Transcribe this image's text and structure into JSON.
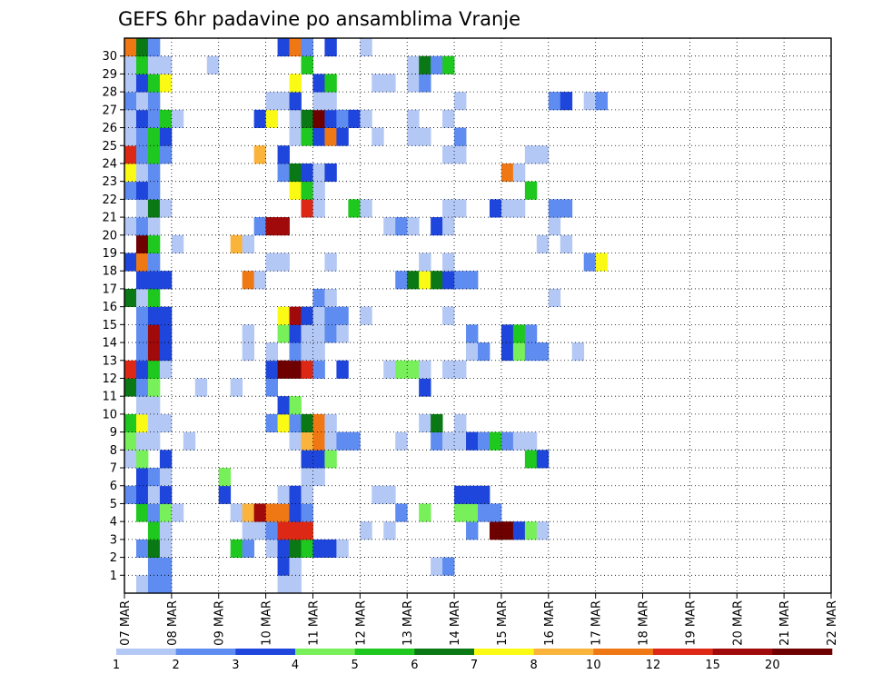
{
  "chart_data": {
    "type": "heatmap",
    "title": "GEFS 6hr padavine po ansamblima Vranje",
    "xlabel": "",
    "ylabel": "",
    "x_tick_labels": [
      "07 MAR",
      "08 MAR",
      "09 MAR",
      "10 MAR",
      "11 MAR",
      "12 MAR",
      "13 MAR",
      "14 MAR",
      "15 MAR",
      "16 MAR",
      "17 MAR",
      "18 MAR",
      "19 MAR",
      "20 MAR",
      "21 MAR",
      "22 MAR"
    ],
    "y_tick_labels": [
      "1",
      "2",
      "3",
      "4",
      "5",
      "6",
      "7",
      "8",
      "9",
      "10",
      "11",
      "12",
      "13",
      "14",
      "15",
      "16",
      "17",
      "18",
      "19",
      "20",
      "21",
      "22",
      "23",
      "24",
      "25",
      "26",
      "27",
      "28",
      "29",
      "30"
    ],
    "x_steps_per_day": 4,
    "members": 31,
    "grid": true,
    "legend_position": "bottom",
    "color_scale": {
      "labels": [
        "1",
        "2",
        "3",
        "4",
        "5",
        "6",
        "7",
        "8",
        "10",
        "12",
        "15",
        "20"
      ],
      "colors": [
        "#b4c8f5",
        "#5f8cf0",
        "#1e46dc",
        "#78f05a",
        "#1ec81e",
        "#0a7814",
        "#fafa14",
        "#fab43c",
        "#f07814",
        "#dc2814",
        "#a00a0a",
        "#6e0000"
      ]
    },
    "cells": [
      [
        0,
        1,
        1
      ],
      [
        0,
        2,
        2
      ],
      [
        0,
        3,
        2
      ],
      [
        0,
        13,
        1
      ],
      [
        0,
        14,
        1
      ],
      [
        1,
        2,
        2
      ],
      [
        1,
        3,
        2
      ],
      [
        1,
        13,
        3
      ],
      [
        1,
        14,
        1
      ],
      [
        1,
        26,
        1
      ],
      [
        1,
        27,
        2
      ],
      [
        2,
        1,
        2
      ],
      [
        2,
        2,
        6
      ],
      [
        2,
        3,
        1
      ],
      [
        2,
        9,
        5
      ],
      [
        2,
        10,
        2
      ],
      [
        2,
        12,
        1
      ],
      [
        2,
        13,
        3
      ],
      [
        2,
        14,
        6
      ],
      [
        2,
        15,
        5
      ],
      [
        2,
        16,
        3
      ],
      [
        2,
        17,
        3
      ],
      [
        2,
        18,
        1
      ],
      [
        3,
        2,
        5
      ],
      [
        3,
        3,
        1
      ],
      [
        3,
        10,
        1
      ],
      [
        3,
        11,
        1
      ],
      [
        3,
        12,
        2
      ],
      [
        3,
        13,
        10
      ],
      [
        3,
        14,
        10
      ],
      [
        3,
        15,
        10
      ],
      [
        3,
        20,
        1
      ],
      [
        3,
        22,
        1
      ],
      [
        3,
        29,
        2
      ],
      [
        3,
        31,
        12
      ],
      [
        3,
        32,
        12
      ],
      [
        3,
        33,
        3
      ],
      [
        3,
        34,
        4
      ],
      [
        3,
        35,
        1
      ],
      [
        4,
        1,
        5
      ],
      [
        4,
        2,
        2
      ],
      [
        4,
        3,
        4
      ],
      [
        4,
        4,
        1
      ],
      [
        4,
        9,
        1
      ],
      [
        4,
        10,
        8
      ],
      [
        4,
        11,
        11
      ],
      [
        4,
        12,
        9
      ],
      [
        4,
        13,
        9
      ],
      [
        4,
        14,
        3
      ],
      [
        4,
        15,
        2
      ],
      [
        4,
        23,
        2
      ],
      [
        4,
        25,
        4
      ],
      [
        4,
        28,
        4
      ],
      [
        4,
        29,
        4
      ],
      [
        4,
        30,
        2
      ],
      [
        4,
        31,
        2
      ],
      [
        5,
        0,
        2
      ],
      [
        5,
        1,
        3
      ],
      [
        5,
        2,
        1
      ],
      [
        5,
        3,
        3
      ],
      [
        5,
        8,
        3
      ],
      [
        5,
        13,
        1
      ],
      [
        5,
        14,
        3
      ],
      [
        5,
        15,
        1
      ],
      [
        5,
        21,
        1
      ],
      [
        5,
        22,
        1
      ],
      [
        5,
        28,
        3
      ],
      [
        5,
        29,
        3
      ],
      [
        5,
        30,
        3
      ],
      [
        6,
        1,
        3
      ],
      [
        6,
        2,
        2
      ],
      [
        6,
        3,
        1
      ],
      [
        6,
        8,
        4
      ],
      [
        6,
        15,
        1
      ],
      [
        6,
        16,
        1
      ],
      [
        7,
        0,
        1
      ],
      [
        7,
        1,
        4
      ],
      [
        7,
        3,
        3
      ],
      [
        7,
        15,
        3
      ],
      [
        7,
        16,
        3
      ],
      [
        7,
        17,
        4
      ],
      [
        7,
        34,
        5
      ],
      [
        7,
        35,
        3
      ],
      [
        8,
        0,
        4
      ],
      [
        8,
        1,
        1
      ],
      [
        8,
        2,
        1
      ],
      [
        8,
        5,
        1
      ],
      [
        8,
        14,
        1
      ],
      [
        8,
        15,
        8
      ],
      [
        8,
        16,
        9
      ],
      [
        8,
        17,
        1
      ],
      [
        8,
        18,
        2
      ],
      [
        8,
        19,
        2
      ],
      [
        8,
        23,
        1
      ],
      [
        8,
        26,
        2
      ],
      [
        8,
        27,
        1
      ],
      [
        8,
        28,
        1
      ],
      [
        8,
        29,
        3
      ],
      [
        8,
        30,
        2
      ],
      [
        8,
        31,
        5
      ],
      [
        8,
        32,
        2
      ],
      [
        8,
        33,
        1
      ],
      [
        8,
        34,
        1
      ],
      [
        9,
        0,
        5
      ],
      [
        9,
        1,
        7
      ],
      [
        9,
        2,
        1
      ],
      [
        9,
        3,
        1
      ],
      [
        9,
        12,
        2
      ],
      [
        9,
        13,
        7
      ],
      [
        9,
        14,
        2
      ],
      [
        9,
        15,
        6
      ],
      [
        9,
        16,
        9
      ],
      [
        9,
        17,
        1
      ],
      [
        9,
        25,
        1
      ],
      [
        9,
        26,
        6
      ],
      [
        9,
        28,
        1
      ],
      [
        10,
        1,
        1
      ],
      [
        10,
        2,
        1
      ],
      [
        10,
        13,
        3
      ],
      [
        10,
        14,
        4
      ],
      [
        11,
        0,
        6
      ],
      [
        11,
        1,
        2
      ],
      [
        11,
        2,
        4
      ],
      [
        11,
        6,
        1
      ],
      [
        11,
        9,
        1
      ],
      [
        11,
        12,
        2
      ],
      [
        11,
        25,
        3
      ],
      [
        12,
        0,
        10
      ],
      [
        12,
        1,
        3
      ],
      [
        12,
        2,
        5
      ],
      [
        12,
        3,
        1
      ],
      [
        12,
        12,
        3
      ],
      [
        12,
        13,
        12
      ],
      [
        12,
        14,
        12
      ],
      [
        12,
        15,
        10
      ],
      [
        12,
        16,
        2
      ],
      [
        12,
        18,
        3
      ],
      [
        12,
        22,
        1
      ],
      [
        12,
        23,
        4
      ],
      [
        12,
        24,
        4
      ],
      [
        12,
        25,
        1
      ],
      [
        12,
        27,
        1
      ],
      [
        12,
        28,
        1
      ],
      [
        13,
        1,
        2
      ],
      [
        13,
        2,
        11
      ],
      [
        13,
        3,
        3
      ],
      [
        13,
        10,
        1
      ],
      [
        13,
        12,
        1
      ],
      [
        13,
        14,
        2
      ],
      [
        13,
        15,
        1
      ],
      [
        13,
        16,
        1
      ],
      [
        13,
        29,
        1
      ],
      [
        13,
        30,
        2
      ],
      [
        13,
        32,
        3
      ],
      [
        13,
        33,
        4
      ],
      [
        13,
        34,
        2
      ],
      [
        13,
        35,
        2
      ],
      [
        13,
        38,
        1
      ],
      [
        14,
        1,
        2
      ],
      [
        14,
        2,
        11
      ],
      [
        14,
        3,
        3
      ],
      [
        14,
        10,
        1
      ],
      [
        14,
        13,
        4
      ],
      [
        14,
        14,
        3
      ],
      [
        14,
        15,
        1
      ],
      [
        14,
        16,
        1
      ],
      [
        14,
        17,
        2
      ],
      [
        14,
        18,
        1
      ],
      [
        14,
        29,
        2
      ],
      [
        14,
        32,
        3
      ],
      [
        14,
        33,
        5
      ],
      [
        14,
        34,
        2
      ],
      [
        15,
        1,
        2
      ],
      [
        15,
        2,
        3
      ],
      [
        15,
        3,
        3
      ],
      [
        15,
        13,
        7
      ],
      [
        15,
        14,
        11
      ],
      [
        15,
        15,
        3
      ],
      [
        15,
        16,
        1
      ],
      [
        15,
        17,
        2
      ],
      [
        15,
        18,
        2
      ],
      [
        15,
        20,
        1
      ],
      [
        15,
        27,
        1
      ],
      [
        16,
        0,
        6
      ],
      [
        16,
        1,
        1
      ],
      [
        16,
        2,
        5
      ],
      [
        16,
        16,
        2
      ],
      [
        16,
        17,
        1
      ],
      [
        16,
        36,
        1
      ],
      [
        17,
        1,
        3
      ],
      [
        17,
        2,
        3
      ],
      [
        17,
        3,
        3
      ],
      [
        17,
        10,
        9
      ],
      [
        17,
        11,
        1
      ],
      [
        17,
        23,
        2
      ],
      [
        17,
        24,
        6
      ],
      [
        17,
        25,
        7
      ],
      [
        17,
        26,
        6
      ],
      [
        17,
        27,
        3
      ],
      [
        17,
        28,
        2
      ],
      [
        17,
        29,
        2
      ],
      [
        18,
        0,
        3
      ],
      [
        18,
        1,
        9
      ],
      [
        18,
        2,
        2
      ],
      [
        18,
        12,
        1
      ],
      [
        18,
        13,
        1
      ],
      [
        18,
        17,
        1
      ],
      [
        18,
        25,
        1
      ],
      [
        18,
        27,
        1
      ],
      [
        18,
        39,
        2
      ],
      [
        18,
        40,
        7
      ],
      [
        19,
        1,
        12
      ],
      [
        19,
        2,
        5
      ],
      [
        19,
        4,
        1
      ],
      [
        19,
        9,
        8
      ],
      [
        19,
        10,
        1
      ],
      [
        19,
        35,
        1
      ],
      [
        19,
        37,
        1
      ],
      [
        20,
        0,
        1
      ],
      [
        20,
        1,
        2
      ],
      [
        20,
        2,
        1
      ],
      [
        20,
        11,
        2
      ],
      [
        20,
        12,
        11
      ],
      [
        20,
        13,
        11
      ],
      [
        20,
        22,
        1
      ],
      [
        20,
        23,
        2
      ],
      [
        20,
        24,
        1
      ],
      [
        20,
        26,
        3
      ],
      [
        20,
        27,
        1
      ],
      [
        20,
        36,
        1
      ],
      [
        21,
        1,
        1
      ],
      [
        21,
        2,
        6
      ],
      [
        21,
        3,
        1
      ],
      [
        21,
        15,
        10
      ],
      [
        21,
        16,
        1
      ],
      [
        21,
        19,
        5
      ],
      [
        21,
        20,
        1
      ],
      [
        21,
        27,
        1
      ],
      [
        21,
        28,
        1
      ],
      [
        21,
        31,
        3
      ],
      [
        21,
        32,
        1
      ],
      [
        21,
        33,
        1
      ],
      [
        21,
        36,
        2
      ],
      [
        21,
        37,
        2
      ],
      [
        22,
        0,
        2
      ],
      [
        22,
        1,
        3
      ],
      [
        22,
        2,
        2
      ],
      [
        22,
        14,
        7
      ],
      [
        22,
        15,
        5
      ],
      [
        22,
        16,
        1
      ],
      [
        22,
        34,
        5
      ],
      [
        23,
        0,
        7
      ],
      [
        23,
        1,
        1
      ],
      [
        23,
        2,
        2
      ],
      [
        23,
        13,
        2
      ],
      [
        23,
        14,
        6
      ],
      [
        23,
        15,
        3
      ],
      [
        23,
        16,
        1
      ],
      [
        23,
        17,
        3
      ],
      [
        23,
        32,
        9
      ],
      [
        23,
        33,
        1
      ],
      [
        24,
        0,
        10
      ],
      [
        24,
        1,
        2
      ],
      [
        24,
        2,
        5
      ],
      [
        24,
        3,
        2
      ],
      [
        24,
        11,
        8
      ],
      [
        24,
        13,
        3
      ],
      [
        24,
        27,
        1
      ],
      [
        24,
        28,
        1
      ],
      [
        24,
        34,
        1
      ],
      [
        24,
        35,
        1
      ],
      [
        25,
        0,
        1
      ],
      [
        25,
        1,
        2
      ],
      [
        25,
        2,
        5
      ],
      [
        25,
        3,
        3
      ],
      [
        25,
        14,
        1
      ],
      [
        25,
        15,
        5
      ],
      [
        25,
        16,
        3
      ],
      [
        25,
        17,
        9
      ],
      [
        25,
        18,
        3
      ],
      [
        25,
        21,
        1
      ],
      [
        25,
        24,
        1
      ],
      [
        25,
        25,
        1
      ],
      [
        25,
        28,
        2
      ],
      [
        26,
        0,
        1
      ],
      [
        26,
        1,
        3
      ],
      [
        26,
        2,
        2
      ],
      [
        26,
        3,
        5
      ],
      [
        26,
        4,
        1
      ],
      [
        26,
        11,
        3
      ],
      [
        26,
        12,
        7
      ],
      [
        26,
        14,
        1
      ],
      [
        26,
        15,
        6
      ],
      [
        26,
        16,
        12
      ],
      [
        26,
        17,
        3
      ],
      [
        26,
        18,
        2
      ],
      [
        26,
        19,
        3
      ],
      [
        26,
        20,
        1
      ],
      [
        26,
        24,
        1
      ],
      [
        26,
        27,
        1
      ],
      [
        27,
        0,
        2
      ],
      [
        27,
        1,
        1
      ],
      [
        27,
        2,
        2
      ],
      [
        27,
        12,
        1
      ],
      [
        27,
        13,
        1
      ],
      [
        27,
        14,
        3
      ],
      [
        27,
        16,
        1
      ],
      [
        27,
        17,
        1
      ],
      [
        27,
        28,
        1
      ],
      [
        27,
        36,
        2
      ],
      [
        27,
        37,
        3
      ],
      [
        27,
        39,
        1
      ],
      [
        27,
        40,
        2
      ],
      [
        28,
        0,
        1
      ],
      [
        28,
        1,
        3
      ],
      [
        28,
        2,
        5
      ],
      [
        28,
        3,
        7
      ],
      [
        28,
        14,
        7
      ],
      [
        28,
        16,
        3
      ],
      [
        28,
        17,
        5
      ],
      [
        28,
        21,
        1
      ],
      [
        28,
        22,
        1
      ],
      [
        28,
        24,
        1
      ],
      [
        28,
        25,
        2
      ],
      [
        29,
        0,
        1
      ],
      [
        29,
        1,
        5
      ],
      [
        29,
        2,
        1
      ],
      [
        29,
        3,
        1
      ],
      [
        29,
        7,
        1
      ],
      [
        29,
        15,
        5
      ],
      [
        29,
        24,
        1
      ],
      [
        29,
        25,
        6
      ],
      [
        29,
        26,
        2
      ],
      [
        29,
        27,
        5
      ],
      [
        30,
        0,
        9
      ],
      [
        30,
        1,
        6
      ],
      [
        30,
        2,
        2
      ],
      [
        30,
        13,
        3
      ],
      [
        30,
        14,
        9
      ],
      [
        30,
        15,
        2
      ],
      [
        30,
        17,
        3
      ],
      [
        30,
        20,
        1
      ]
    ]
  }
}
